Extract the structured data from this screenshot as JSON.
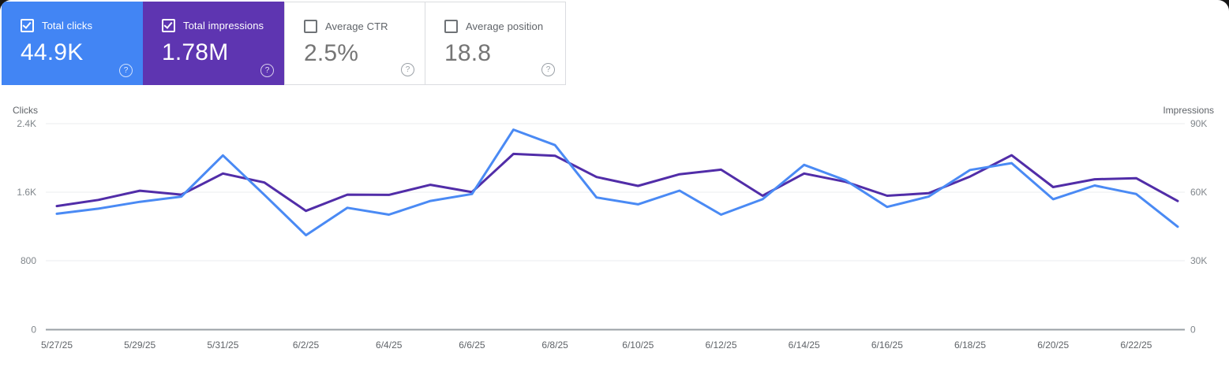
{
  "icons": {
    "help_glyph": "?"
  },
  "cards": [
    {
      "label": "Total clicks",
      "value": "44.9K",
      "checked": true,
      "bg": "#4285f4"
    },
    {
      "label": "Total impressions",
      "value": "1.78M",
      "checked": true,
      "bg": "#5e35b1"
    },
    {
      "label": "Average CTR",
      "value": "2.5%",
      "checked": false,
      "bg": "#ffffff"
    },
    {
      "label": "Average position",
      "value": "18.8",
      "checked": false,
      "bg": "#ffffff"
    }
  ],
  "chart": {
    "left_axis": {
      "title": "Clicks",
      "ticks": [
        "2.4K",
        "1.6K",
        "800",
        "0"
      ]
    },
    "right_axis": {
      "title": "Impressions",
      "ticks": [
        "90K",
        "60K",
        "30K",
        "0"
      ]
    }
  },
  "chart_data": {
    "type": "line",
    "x": [
      "5/27/25",
      "5/28/25",
      "5/29/25",
      "5/30/25",
      "5/31/25",
      "6/1/25",
      "6/2/25",
      "6/3/25",
      "6/4/25",
      "6/5/25",
      "6/6/25",
      "6/7/25",
      "6/8/25",
      "6/9/25",
      "6/10/25",
      "6/11/25",
      "6/12/25",
      "6/13/25",
      "6/14/25",
      "6/15/25",
      "6/16/25",
      "6/17/25",
      "6/18/25",
      "6/19/25",
      "6/20/25",
      "6/21/25",
      "6/22/25",
      "6/23/25"
    ],
    "x_tick_labels": [
      "5/27/25",
      "5/29/25",
      "5/31/25",
      "6/2/25",
      "6/4/25",
      "6/6/25",
      "6/8/25",
      "6/10/25",
      "6/12/25",
      "6/14/25",
      "6/16/25",
      "6/18/25",
      "6/20/25",
      "6/22/25"
    ],
    "series": [
      {
        "name": "Total impressions",
        "axis": "right",
        "color": "#512da8",
        "values": [
          54000,
          56700,
          60700,
          59000,
          68200,
          64300,
          51900,
          59000,
          58900,
          63300,
          60100,
          76800,
          76000,
          66700,
          62800,
          67900,
          69900,
          58500,
          68200,
          64600,
          58500,
          59600,
          66900,
          76200,
          62300,
          65700,
          66200,
          56200
        ]
      },
      {
        "name": "Total clicks",
        "axis": "left",
        "color": "#4a8af4",
        "values": [
          1350,
          1410,
          1490,
          1550,
          2030,
          1570,
          1100,
          1420,
          1340,
          1500,
          1580,
          2330,
          2150,
          1540,
          1460,
          1620,
          1340,
          1520,
          1920,
          1740,
          1430,
          1550,
          1860,
          1940,
          1520,
          1680,
          1580,
          1200
        ]
      }
    ],
    "left_ylim": [
      0,
      2400
    ],
    "right_ylim": [
      0,
      90000
    ],
    "grid": true,
    "legend_position": "none"
  }
}
